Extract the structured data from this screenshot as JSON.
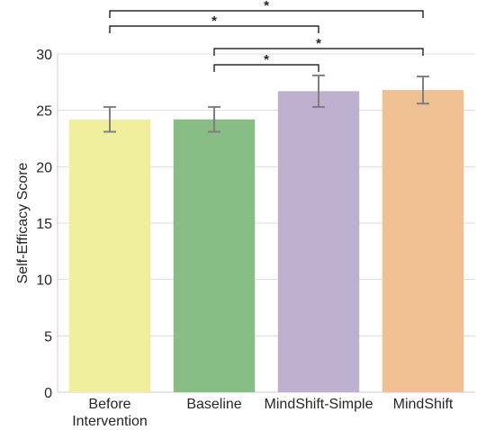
{
  "chart_data": {
    "type": "bar",
    "ylabel": "Self-Efficacy Score",
    "ylim": [
      0,
      30
    ],
    "yticks": [
      0,
      5,
      10,
      15,
      20,
      25,
      30
    ],
    "grid": "horizontal",
    "categories": [
      {
        "lines": [
          "Before",
          "Intervention"
        ],
        "value": 24.2,
        "err_low": 23.1,
        "err_high": 25.3,
        "color": "#efef9d"
      },
      {
        "lines": [
          "Baseline"
        ],
        "value": 24.2,
        "err_low": 23.1,
        "err_high": 25.3,
        "color": "#88be86"
      },
      {
        "lines": [
          "MindShift-Simple"
        ],
        "value": 26.7,
        "err_low": 25.3,
        "err_high": 28.1,
        "color": "#bfb0cf"
      },
      {
        "lines": [
          "MindShift"
        ],
        "value": 26.8,
        "err_low": 25.6,
        "err_high": 28.0,
        "color": "#efc092"
      }
    ],
    "significance": [
      {
        "from": 0,
        "to": 3,
        "label": "*"
      },
      {
        "from": 0,
        "to": 2,
        "label": "*"
      },
      {
        "from": 1,
        "to": 3,
        "label": "*"
      },
      {
        "from": 1,
        "to": 2,
        "label": "*"
      }
    ]
  }
}
